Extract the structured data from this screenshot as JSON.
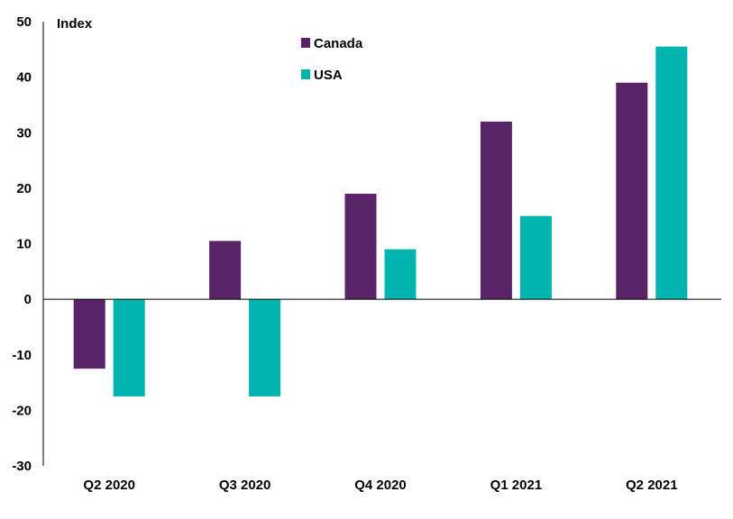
{
  "chart_data": {
    "type": "bar",
    "title": "",
    "xlabel": "",
    "ylabel": "Index",
    "ylim": [
      -30,
      50
    ],
    "yticks": [
      50,
      40,
      30,
      20,
      10,
      0,
      -10,
      -20,
      -30
    ],
    "grid": false,
    "legend_position": "top-center",
    "categories": [
      "Q2 2020",
      "Q3 2020",
      "Q4 2020",
      "Q1 2021",
      "Q2 2021"
    ],
    "series": [
      {
        "name": "Canada",
        "color": "#582467",
        "values": [
          -12.5,
          10.5,
          19,
          32,
          39
        ]
      },
      {
        "name": "USA",
        "color": "#00B5B0",
        "values": [
          -17.5,
          -17.5,
          9,
          15,
          45.5
        ]
      }
    ]
  }
}
